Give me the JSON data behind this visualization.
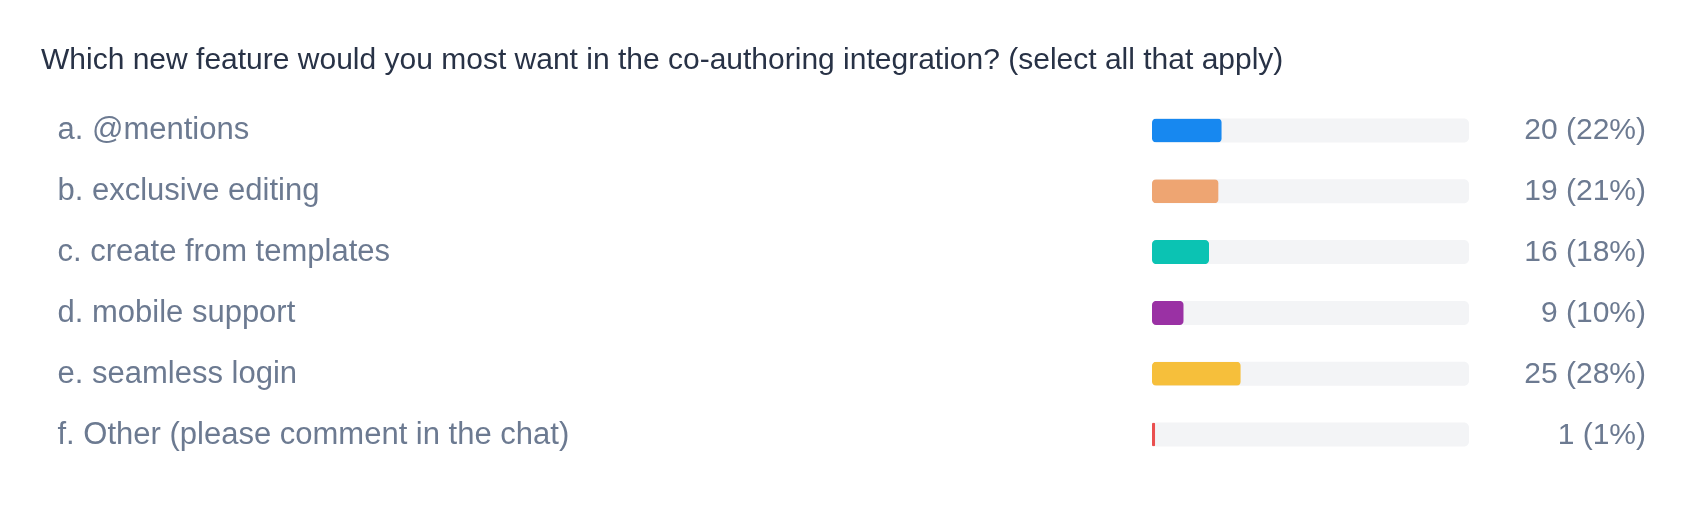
{
  "chart_data": {
    "type": "bar",
    "orientation": "horizontal",
    "title": "Which new feature would you most want in the co-authoring integration? (select all that apply)",
    "categories": [
      "a. @mentions",
      "b. exclusive editing",
      "c. create from templates",
      "d. mobile support",
      "e. seamless login",
      "f. Other (please comment in the chat)"
    ],
    "values": [
      22,
      21,
      18,
      10,
      28,
      1
    ],
    "value_labels": [
      "20 (22%)",
      "19 (21%)",
      "16 (18%)",
      "9 (10%)",
      "25 (28%)",
      "1 (1%)"
    ],
    "colors": [
      "#1788f0",
      "#eea572",
      "#0bc3b3",
      "#9a31a4",
      "#f6bf3b",
      "#ea4f4f"
    ],
    "xlim": [
      0,
      100
    ]
  }
}
